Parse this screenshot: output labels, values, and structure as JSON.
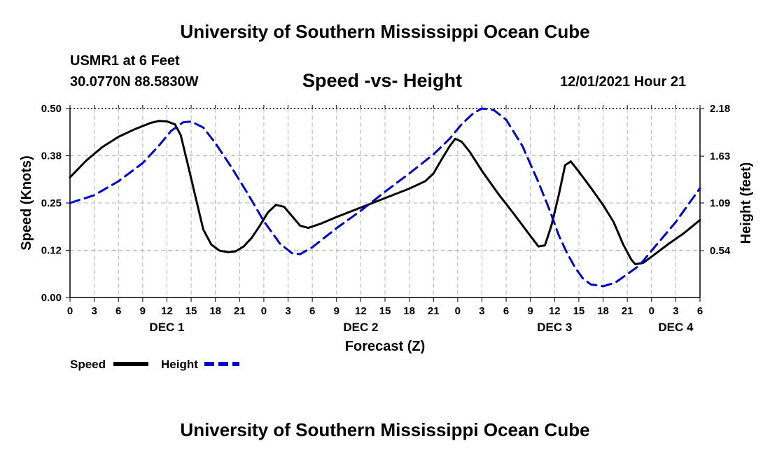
{
  "header": {
    "title": "University of Southern Mississippi Ocean Cube",
    "station": "USMR1 at 6 Feet",
    "coordinates": "30.0770N  88.5830W",
    "chart_title": "Speed -vs- Height",
    "datetime": "12/01/2021 Hour 21"
  },
  "footer": {
    "title": "University of Southern Mississippi Ocean Cube"
  },
  "colors": {
    "speed": "#000000",
    "height": "#0000cc",
    "grid": "#b4b4b4"
  },
  "chart_data": {
    "type": "line",
    "title": "Speed -vs- Height",
    "xlabel": "Forecast (Z)",
    "ylabel_left": "Speed (Knots)",
    "ylabel_right": "Height (feet)",
    "x_range_hours": [
      0,
      78
    ],
    "x_ticks": [
      {
        "h": 0,
        "label": "0"
      },
      {
        "h": 3,
        "label": "3"
      },
      {
        "h": 6,
        "label": "6"
      },
      {
        "h": 9,
        "label": "9"
      },
      {
        "h": 12,
        "label": "12"
      },
      {
        "h": 15,
        "label": "15"
      },
      {
        "h": 18,
        "label": "18"
      },
      {
        "h": 21,
        "label": "21"
      },
      {
        "h": 24,
        "label": "0"
      },
      {
        "h": 27,
        "label": "3"
      },
      {
        "h": 30,
        "label": "6"
      },
      {
        "h": 33,
        "label": "9"
      },
      {
        "h": 36,
        "label": "12"
      },
      {
        "h": 39,
        "label": "15"
      },
      {
        "h": 42,
        "label": "18"
      },
      {
        "h": 45,
        "label": "21"
      },
      {
        "h": 48,
        "label": "0"
      },
      {
        "h": 51,
        "label": "3"
      },
      {
        "h": 54,
        "label": "6"
      },
      {
        "h": 57,
        "label": "9"
      },
      {
        "h": 60,
        "label": "12"
      },
      {
        "h": 63,
        "label": "15"
      },
      {
        "h": 66,
        "label": "18"
      },
      {
        "h": 69,
        "label": "21"
      },
      {
        "h": 72,
        "label": "0"
      },
      {
        "h": 75,
        "label": "3"
      },
      {
        "h": 78,
        "label": "6"
      }
    ],
    "day_labels": [
      {
        "h": 12,
        "label": "DEC 1"
      },
      {
        "h": 36,
        "label": "DEC 2"
      },
      {
        "h": 60,
        "label": "DEC 3"
      },
      {
        "h": 75,
        "label": "DEC 4"
      }
    ],
    "y_left": {
      "range": [
        0,
        0.5
      ],
      "ticks": [
        0.0,
        0.125,
        0.25,
        0.375,
        0.5
      ],
      "tick_labels": [
        "0.00",
        "0.12",
        "0.25",
        "0.38",
        "0.50"
      ]
    },
    "y_right": {
      "range": [
        0,
        2.18
      ],
      "ticks": [
        0.54,
        1.09,
        1.63,
        2.18
      ],
      "tick_labels": [
        "0.54",
        "1.09",
        "1.63",
        "2.18"
      ]
    },
    "series": [
      {
        "name": "Speed",
        "axis": "left",
        "style": "solid",
        "points": [
          [
            0,
            0.318
          ],
          [
            2,
            0.362
          ],
          [
            4,
            0.398
          ],
          [
            6,
            0.425
          ],
          [
            8,
            0.445
          ],
          [
            10,
            0.462
          ],
          [
            11,
            0.467
          ],
          [
            12,
            0.466
          ],
          [
            13,
            0.458
          ],
          [
            13.7,
            0.43
          ],
          [
            14.5,
            0.36
          ],
          [
            15.5,
            0.27
          ],
          [
            16.5,
            0.18
          ],
          [
            17.5,
            0.14
          ],
          [
            18.5,
            0.124
          ],
          [
            19.5,
            0.12
          ],
          [
            20.5,
            0.122
          ],
          [
            21.5,
            0.135
          ],
          [
            22.5,
            0.158
          ],
          [
            23.5,
            0.19
          ],
          [
            24.5,
            0.225
          ],
          [
            25.5,
            0.245
          ],
          [
            26.5,
            0.24
          ],
          [
            27.5,
            0.215
          ],
          [
            28.5,
            0.19
          ],
          [
            29.5,
            0.184
          ],
          [
            31,
            0.195
          ],
          [
            33,
            0.213
          ],
          [
            36,
            0.238
          ],
          [
            39,
            0.263
          ],
          [
            42,
            0.288
          ],
          [
            44,
            0.308
          ],
          [
            45,
            0.328
          ],
          [
            46,
            0.365
          ],
          [
            47,
            0.4
          ],
          [
            47.7,
            0.42
          ],
          [
            48.5,
            0.412
          ],
          [
            49.5,
            0.385
          ],
          [
            51,
            0.335
          ],
          [
            53,
            0.275
          ],
          [
            55,
            0.22
          ],
          [
            57,
            0.163
          ],
          [
            58,
            0.135
          ],
          [
            58.8,
            0.138
          ],
          [
            59.6,
            0.19
          ],
          [
            60.5,
            0.27
          ],
          [
            61.3,
            0.35
          ],
          [
            62,
            0.36
          ],
          [
            63,
            0.333
          ],
          [
            64.5,
            0.29
          ],
          [
            66,
            0.245
          ],
          [
            67.3,
            0.2
          ],
          [
            68.5,
            0.14
          ],
          [
            69.5,
            0.1
          ],
          [
            70,
            0.088
          ],
          [
            71,
            0.092
          ],
          [
            72,
            0.108
          ],
          [
            74,
            0.14
          ],
          [
            76,
            0.17
          ],
          [
            78,
            0.205
          ]
        ]
      },
      {
        "name": "Height",
        "axis": "right",
        "style": "dashed",
        "points": [
          [
            0,
            1.09
          ],
          [
            3,
            1.18
          ],
          [
            6,
            1.34
          ],
          [
            9,
            1.55
          ],
          [
            11,
            1.75
          ],
          [
            12.5,
            1.92
          ],
          [
            14,
            2.02
          ],
          [
            15,
            2.03
          ],
          [
            16.5,
            1.96
          ],
          [
            18,
            1.78
          ],
          [
            20,
            1.5
          ],
          [
            22,
            1.2
          ],
          [
            24,
            0.88
          ],
          [
            26,
            0.62
          ],
          [
            27.5,
            0.51
          ],
          [
            28.5,
            0.5
          ],
          [
            30,
            0.58
          ],
          [
            33,
            0.8
          ],
          [
            36,
            1.0
          ],
          [
            39,
            1.22
          ],
          [
            42,
            1.43
          ],
          [
            45,
            1.65
          ],
          [
            47,
            1.83
          ],
          [
            48.5,
            2.0
          ],
          [
            50,
            2.13
          ],
          [
            51,
            2.18
          ],
          [
            52.5,
            2.16
          ],
          [
            54,
            2.05
          ],
          [
            56,
            1.75
          ],
          [
            58,
            1.33
          ],
          [
            59.5,
            0.98
          ],
          [
            60.5,
            0.72
          ],
          [
            61.5,
            0.52
          ],
          [
            62.5,
            0.35
          ],
          [
            63.5,
            0.22
          ],
          [
            64.5,
            0.15
          ],
          [
            66,
            0.13
          ],
          [
            67.5,
            0.17
          ],
          [
            69,
            0.27
          ],
          [
            70.5,
            0.37
          ],
          [
            72,
            0.54
          ],
          [
            75,
            0.87
          ],
          [
            78,
            1.26
          ]
        ]
      }
    ],
    "legend": {
      "placement": "bottom-left",
      "entries": [
        "Speed",
        "Height"
      ]
    }
  }
}
